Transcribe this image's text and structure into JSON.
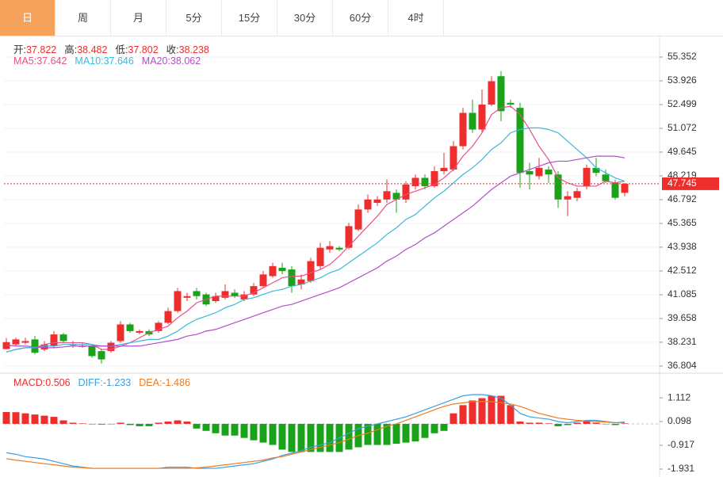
{
  "tabs": {
    "items": [
      "日",
      "周",
      "月",
      "5分",
      "15分",
      "30分",
      "60分",
      "4时"
    ],
    "active": 0
  },
  "chart_data": [
    {
      "type": "candlestick",
      "ohlc_labels": {
        "open": "开:",
        "high": "高:",
        "low": "低:",
        "close": "收:"
      },
      "ohlc": {
        "open": [
          37.822,
          38.1,
          38.2,
          38.4,
          37.8,
          38.0,
          38.7,
          38.05,
          38.0,
          38.0,
          37.7,
          37.7,
          38.3,
          39.3,
          38.8,
          38.9,
          38.9,
          39.4,
          40.1,
          40.9,
          41.3,
          41.1,
          40.7,
          40.9,
          41.2,
          40.8,
          41.1,
          41.6,
          42.2,
          42.7,
          42.6,
          41.7,
          41.9,
          42.8,
          43.8,
          43.9,
          43.9,
          45.0,
          46.2,
          46.6,
          46.8,
          47.2,
          46.8,
          47.6,
          48.1,
          47.6,
          48.5,
          48.6,
          50.0,
          52.0,
          51.0,
          52.5,
          54.2,
          52.6,
          52.3,
          48.5,
          48.2,
          48.6,
          48.3,
          46.8,
          46.9,
          47.6,
          48.7,
          48.3,
          47.8,
          47.2
        ],
        "high": [
          38.482,
          38.5,
          38.5,
          38.6,
          38.3,
          38.9,
          38.8,
          38.3,
          38.2,
          38.1,
          37.8,
          38.3,
          39.5,
          39.4,
          39.0,
          39.0,
          39.5,
          40.3,
          41.5,
          41.2,
          41.5,
          41.2,
          41.2,
          41.7,
          41.4,
          41.3,
          41.8,
          42.5,
          43.0,
          43.0,
          42.8,
          42.3,
          43.3,
          44.2,
          44.3,
          44.0,
          45.4,
          46.5,
          47.1,
          47.0,
          48.0,
          47.4,
          47.9,
          48.3,
          48.3,
          48.8,
          49.6,
          50.3,
          52.3,
          52.8,
          53.4,
          54.2,
          54.5,
          52.8,
          52.6,
          49.0,
          49.3,
          48.8,
          48.5,
          47.3,
          47.5,
          48.9,
          49.3,
          48.6,
          48.0,
          47.8
        ],
        "low": [
          37.802,
          38.0,
          38.1,
          37.5,
          37.7,
          37.9,
          38.2,
          37.9,
          37.9,
          37.3,
          36.95,
          37.6,
          38.2,
          38.8,
          38.7,
          38.6,
          38.8,
          39.3,
          40.0,
          40.7,
          40.8,
          40.4,
          40.6,
          40.8,
          40.9,
          40.7,
          41.0,
          41.5,
          42.1,
          42.3,
          41.2,
          41.4,
          41.8,
          42.6,
          43.6,
          43.7,
          43.8,
          44.9,
          46.0,
          46.4,
          46.6,
          46.0,
          46.6,
          47.4,
          47.4,
          47.5,
          48.3,
          48.5,
          49.8,
          50.8,
          50.8,
          52.4,
          51.5,
          52.3,
          47.5,
          47.4,
          48.0,
          47.8,
          46.3,
          45.8,
          46.7,
          47.4,
          48.2,
          47.8,
          46.8,
          47.0
        ],
        "close": [
          38.238,
          38.4,
          38.3,
          37.6,
          38.1,
          38.7,
          38.3,
          38.1,
          38.0,
          37.4,
          37.2,
          38.2,
          39.3,
          38.9,
          38.9,
          38.7,
          39.4,
          40.1,
          41.3,
          41.0,
          41.0,
          40.5,
          41.0,
          41.3,
          41.0,
          41.1,
          41.6,
          42.3,
          42.8,
          42.5,
          41.6,
          42.0,
          43.1,
          43.9,
          44.0,
          43.8,
          45.2,
          46.2,
          46.8,
          46.8,
          47.3,
          46.8,
          47.7,
          48.1,
          47.6,
          48.5,
          48.7,
          50.0,
          52.0,
          51.0,
          52.5,
          53.9,
          52.1,
          52.5,
          48.4,
          48.3,
          48.7,
          48.3,
          46.8,
          47.0,
          47.3,
          48.7,
          48.4,
          47.9,
          46.9,
          47.745
        ]
      },
      "up_color": "#ee2d2d",
      "down_color": "#1aa31a",
      "series": [
        {
          "name": "MA5:",
          "color": "#e8508a",
          "values": [
            37.642,
            37.8,
            37.9,
            37.9,
            38.1,
            38.2,
            38.2,
            38.2,
            38.2,
            38.1,
            37.8,
            37.8,
            38.0,
            38.2,
            38.5,
            38.8,
            39.0,
            39.2,
            39.7,
            40.1,
            40.6,
            40.8,
            41.0,
            41.0,
            41.0,
            41.0,
            41.2,
            41.5,
            41.8,
            42.1,
            42.2,
            42.2,
            42.4,
            42.6,
            42.9,
            43.4,
            44.0,
            44.6,
            45.2,
            45.8,
            46.5,
            46.8,
            47.1,
            47.3,
            47.5,
            47.7,
            48.1,
            48.6,
            49.4,
            50.0,
            50.8,
            51.9,
            52.3,
            52.4,
            51.9,
            51.0,
            50.0,
            49.2,
            48.1,
            47.8,
            47.6,
            47.6,
            47.6,
            47.9,
            47.8,
            47.9
          ]
        },
        {
          "name": "MA10:",
          "color": "#3cb8d8",
          "values": [
            37.646,
            37.8,
            37.9,
            37.9,
            38.0,
            38.0,
            38.1,
            38.1,
            38.1,
            38.1,
            38.0,
            38.0,
            38.1,
            38.2,
            38.3,
            38.4,
            38.4,
            38.6,
            38.9,
            39.3,
            39.6,
            39.8,
            40.0,
            40.3,
            40.5,
            40.8,
            40.9,
            41.1,
            41.3,
            41.4,
            41.6,
            41.7,
            41.9,
            42.1,
            42.4,
            42.6,
            43.0,
            43.4,
            43.8,
            44.2,
            44.7,
            45.1,
            45.6,
            45.9,
            46.4,
            46.9,
            47.3,
            47.8,
            48.3,
            48.7,
            49.2,
            49.8,
            50.2,
            50.8,
            51.0,
            51.1,
            51.1,
            51.0,
            50.8,
            50.3,
            49.8,
            49.3,
            48.7,
            48.4,
            48.1,
            47.9
          ]
        },
        {
          "name": "MA20:",
          "color": "#b14fc5",
          "values": [
            38.062,
            38.0,
            38.0,
            37.95,
            37.9,
            37.9,
            37.95,
            38.0,
            38.0,
            38.0,
            38.0,
            38.0,
            38.0,
            38.0,
            38.0,
            38.1,
            38.2,
            38.3,
            38.4,
            38.6,
            38.7,
            38.9,
            39.0,
            39.2,
            39.4,
            39.6,
            39.8,
            40.0,
            40.2,
            40.4,
            40.5,
            40.7,
            40.9,
            41.1,
            41.3,
            41.5,
            41.8,
            42.1,
            42.4,
            42.7,
            43.1,
            43.4,
            43.8,
            44.1,
            44.5,
            44.8,
            45.2,
            45.6,
            46.0,
            46.4,
            46.9,
            47.4,
            47.8,
            48.2,
            48.4,
            48.6,
            48.8,
            49.0,
            49.1,
            49.1,
            49.2,
            49.3,
            49.4,
            49.4,
            49.4,
            49.3
          ]
        }
      ],
      "ylim": [
        36.42,
        56.54
      ],
      "yticks": [
        55.352,
        53.926,
        52.499,
        51.072,
        49.645,
        48.219,
        46.792,
        45.365,
        43.938,
        42.512,
        41.085,
        39.658,
        38.231,
        36.804
      ],
      "grid": true
    },
    {
      "type": "macd",
      "series": [
        {
          "name": "MACD:",
          "color": "#ee2d2d",
          "negative_color": "#1aa31a",
          "values": [
            0.506,
            0.5,
            0.45,
            0.4,
            0.35,
            0.3,
            0.15,
            0.05,
            0.02,
            -0.02,
            -0.03,
            0.0,
            0.05,
            -0.05,
            -0.1,
            -0.1,
            0.05,
            0.1,
            0.15,
            0.1,
            -0.2,
            -0.3,
            -0.4,
            -0.5,
            -0.5,
            -0.6,
            -0.7,
            -0.8,
            -0.9,
            -1.1,
            -1.2,
            -1.2,
            -1.2,
            -1.2,
            -1.2,
            -1.2,
            -1.1,
            -1.0,
            -0.9,
            -0.9,
            -0.9,
            -0.85,
            -0.8,
            -0.75,
            -0.6,
            -0.4,
            -0.3,
            0.45,
            0.8,
            1.0,
            1.1,
            1.2,
            1.2,
            0.8,
            0.1,
            0.05,
            0.05,
            0.02,
            -0.1,
            -0.05,
            0.05,
            0.15,
            0.05,
            0.0,
            -0.05,
            0.02
          ]
        },
        {
          "name": "DIFF:",
          "color": "#3a9fe0",
          "values": [
            -1.233,
            -1.3,
            -1.4,
            -1.45,
            -1.5,
            -1.6,
            -1.7,
            -1.8,
            -1.85,
            -1.9,
            -1.9,
            -1.9,
            -1.9,
            -1.9,
            -1.9,
            -1.9,
            -1.9,
            -1.85,
            -1.85,
            -1.85,
            -1.9,
            -1.9,
            -1.9,
            -1.85,
            -1.8,
            -1.75,
            -1.7,
            -1.6,
            -1.5,
            -1.35,
            -1.25,
            -1.15,
            -1.0,
            -0.9,
            -0.8,
            -0.6,
            -0.4,
            -0.2,
            -0.1,
            0.0,
            0.1,
            0.2,
            0.3,
            0.45,
            0.6,
            0.75,
            0.9,
            1.05,
            1.2,
            1.25,
            1.25,
            1.2,
            1.1,
            0.8,
            0.45,
            0.3,
            0.25,
            0.2,
            0.1,
            0.05,
            0.1,
            0.15,
            0.15,
            0.1,
            0.05,
            0.08
          ]
        },
        {
          "name": "DEA:",
          "color": "#f07a1e",
          "values": [
            -1.486,
            -1.55,
            -1.6,
            -1.65,
            -1.7,
            -1.75,
            -1.8,
            -1.85,
            -1.87,
            -1.9,
            -1.9,
            -1.9,
            -1.9,
            -1.9,
            -1.9,
            -1.9,
            -1.9,
            -1.9,
            -1.9,
            -1.9,
            -1.88,
            -1.85,
            -1.8,
            -1.75,
            -1.7,
            -1.65,
            -1.6,
            -1.55,
            -1.45,
            -1.4,
            -1.3,
            -1.2,
            -1.1,
            -1.0,
            -0.9,
            -0.8,
            -0.65,
            -0.5,
            -0.4,
            -0.25,
            -0.1,
            0.0,
            0.15,
            0.3,
            0.45,
            0.6,
            0.75,
            0.85,
            0.9,
            0.95,
            0.95,
            0.95,
            0.9,
            0.85,
            0.75,
            0.6,
            0.45,
            0.35,
            0.25,
            0.2,
            0.15,
            0.12,
            0.1,
            0.08,
            0.05,
            0.05
          ]
        }
      ],
      "ylim": [
        -2.27,
        2.03
      ],
      "yticks": [
        1.112,
        0.098,
        -0.917,
        -1.931
      ]
    }
  ]
}
